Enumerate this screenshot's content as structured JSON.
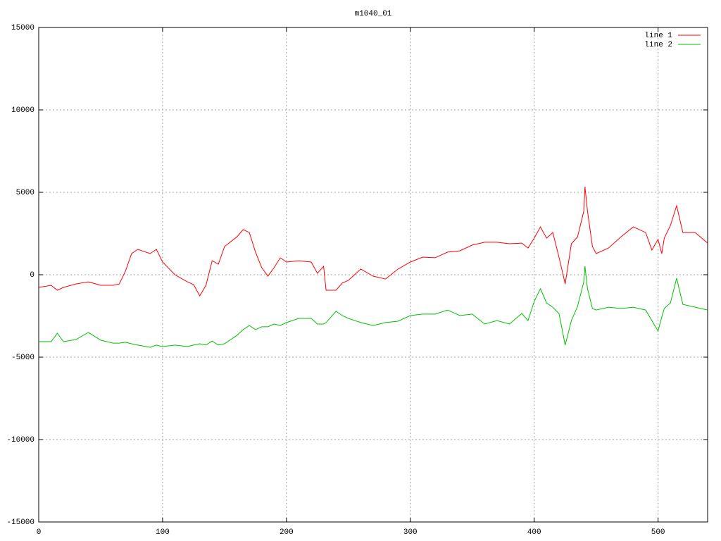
{
  "chart_data": {
    "type": "line",
    "title": "m1040_01",
    "x": [
      0,
      10,
      15,
      20,
      30,
      40,
      50,
      60,
      65,
      70,
      75,
      80,
      90,
      95,
      100,
      110,
      120,
      125,
      130,
      135,
      140,
      145,
      150,
      160,
      165,
      170,
      175,
      180,
      185,
      190,
      195,
      200,
      210,
      220,
      225,
      230,
      232,
      240,
      245,
      250,
      260,
      270,
      280,
      290,
      300,
      310,
      320,
      330,
      340,
      350,
      360,
      370,
      380,
      390,
      395,
      400,
      405,
      410,
      415,
      420,
      425,
      430,
      435,
      440,
      441,
      443,
      447,
      450,
      460,
      470,
      480,
      490,
      495,
      500,
      503,
      505,
      510,
      515,
      520,
      530,
      540
    ],
    "series": [
      {
        "name": "line 1",
        "color": "#ff0000",
        "values": [
          -770,
          -640,
          -940,
          -770,
          -560,
          -430,
          -640,
          -640,
          -560,
          210,
          1280,
          1540,
          1280,
          1540,
          770,
          0,
          -430,
          -600,
          -1280,
          -640,
          850,
          640,
          1710,
          2300,
          2740,
          2560,
          1370,
          430,
          -85,
          430,
          1030,
          770,
          850,
          770,
          90,
          510,
          -940,
          -940,
          -510,
          -340,
          340,
          -85,
          -260,
          340,
          770,
          1070,
          1030,
          1370,
          1450,
          1800,
          1970,
          1970,
          1880,
          1920,
          1620,
          2220,
          2900,
          2220,
          2560,
          1070,
          -560,
          1880,
          2300,
          3850,
          5340,
          3850,
          1710,
          1280,
          1620,
          2300,
          2900,
          2560,
          1500,
          2140,
          1280,
          2220,
          2990,
          4190,
          2560,
          2560,
          1920
        ]
      },
      {
        "name": "line 2",
        "color": "#00c000",
        "values": [
          -4060,
          -4060,
          -3550,
          -4060,
          -3930,
          -3500,
          -3970,
          -4150,
          -4150,
          -4100,
          -4190,
          -4270,
          -4400,
          -4270,
          -4360,
          -4270,
          -4360,
          -4270,
          -4190,
          -4270,
          -4020,
          -4270,
          -4190,
          -3680,
          -3330,
          -3080,
          -3330,
          -3160,
          -3160,
          -2990,
          -3080,
          -2900,
          -2650,
          -2650,
          -2990,
          -2990,
          -2900,
          -2220,
          -2480,
          -2650,
          -2900,
          -3080,
          -2900,
          -2820,
          -2480,
          -2390,
          -2390,
          -2140,
          -2480,
          -2390,
          -2990,
          -2780,
          -2990,
          -2350,
          -2780,
          -1620,
          -850,
          -1710,
          -1970,
          -2350,
          -4270,
          -2780,
          -1920,
          -430,
          510,
          -850,
          -2050,
          -2140,
          -1970,
          -2050,
          -1970,
          -2140,
          -2780,
          -3420,
          -2560,
          -2050,
          -1710,
          -210,
          -1800,
          -1970,
          -2140
        ]
      }
    ],
    "xlim": [
      0,
      540
    ],
    "xticks": [
      0,
      100,
      200,
      300,
      400,
      500
    ],
    "ylim": [
      -15000,
      15000
    ],
    "yticks": [
      -15000,
      -10000,
      -5000,
      0,
      5000,
      10000,
      15000
    ],
    "grid": true,
    "legend": "top-right"
  }
}
